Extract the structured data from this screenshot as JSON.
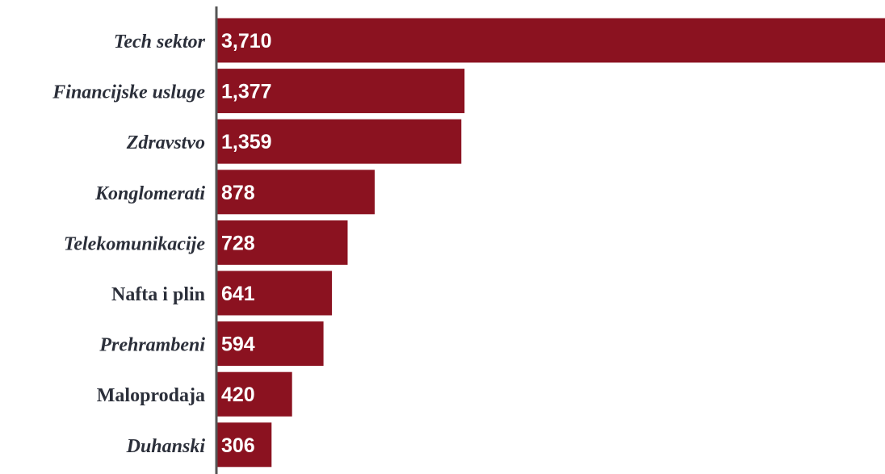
{
  "chart_data": {
    "type": "bar",
    "orientation": "horizontal",
    "categories": [
      "Tech sektor",
      "Financijske usluge",
      "Zdravstvo",
      "Konglomerati",
      "Telekomunikacije",
      "Nafta i plin",
      "Prehrambeni",
      "Maloprodaja",
      "Duhanski"
    ],
    "category_styles": [
      "italic",
      "italic",
      "italic",
      "italic",
      "italic",
      "normal",
      "italic",
      "normal",
      "italic"
    ],
    "values": [
      3710,
      1377,
      1359,
      878,
      728,
      641,
      594,
      420,
      306
    ],
    "value_labels": [
      "3,710",
      "1,377",
      "1,359",
      "878",
      "728",
      "641",
      "594",
      "420",
      "306"
    ],
    "bar_color": "#8b1220",
    "axis_color": "#555555",
    "label_color": "#2b2f3a",
    "value_label_color": "#ffffff",
    "xlim": [
      0,
      3710
    ],
    "grid": false,
    "legend": "none"
  }
}
